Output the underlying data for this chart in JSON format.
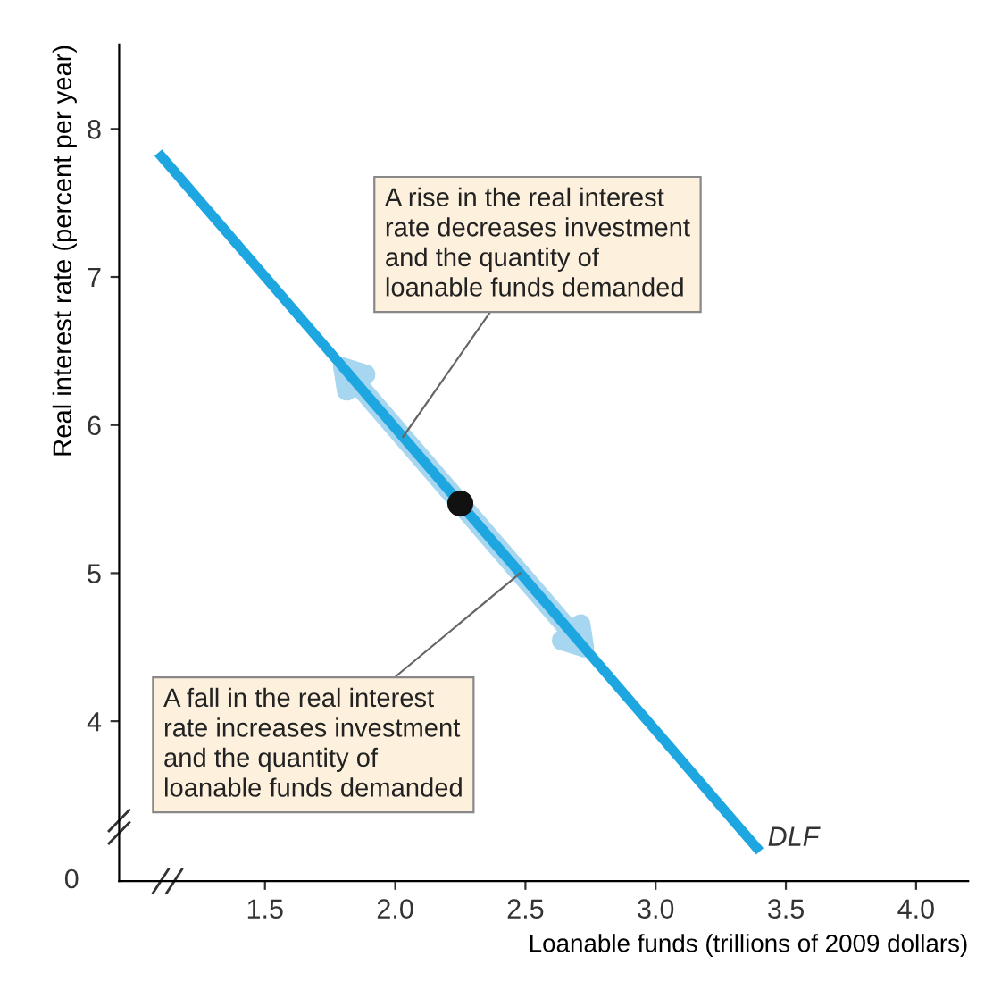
{
  "chart_data": {
    "type": "line",
    "xlabel": "Loanable funds (trillions of 2009 dollars)",
    "ylabel": "Real interest rate (percent per year)",
    "series": [
      {
        "name": "DLF",
        "color": "#1ea6e0",
        "x": [
          1.09,
          3.4
        ],
        "values": [
          7.84,
          3.12
        ],
        "marker": "none"
      },
      {
        "type": "scatter",
        "color": "#111111",
        "x": [
          2.25
        ],
        "values": [
          5.47
        ],
        "marker": "circle"
      }
    ],
    "xlim": [
      0.94,
      4.2
    ],
    "ylim": [
      2.92,
      8.57
    ],
    "xticks": [
      1.5,
      {
        "value": 2,
        "label": "2.0"
      },
      2.5,
      {
        "value": 3,
        "label": "3.0"
      },
      3.5,
      {
        "value": 4,
        "label": "4.0"
      }
    ],
    "yticks": [
      4,
      5,
      6,
      7,
      8
    ],
    "annotations": [
      {
        "text": "A rise in the real interest\nrate decreases investment\nand the quantity of\nloanable funds demanded",
        "x": 2.03,
        "y": 5.92
      },
      {
        "text": "A fall in the real interest\nrate increases investment\nand the quantity of\nloanable funds demanded",
        "x": 2.48,
        "y": 5.0
      },
      "0"
    ],
    "grid": false,
    "legend": false,
    "line_style": "solid"
  }
}
